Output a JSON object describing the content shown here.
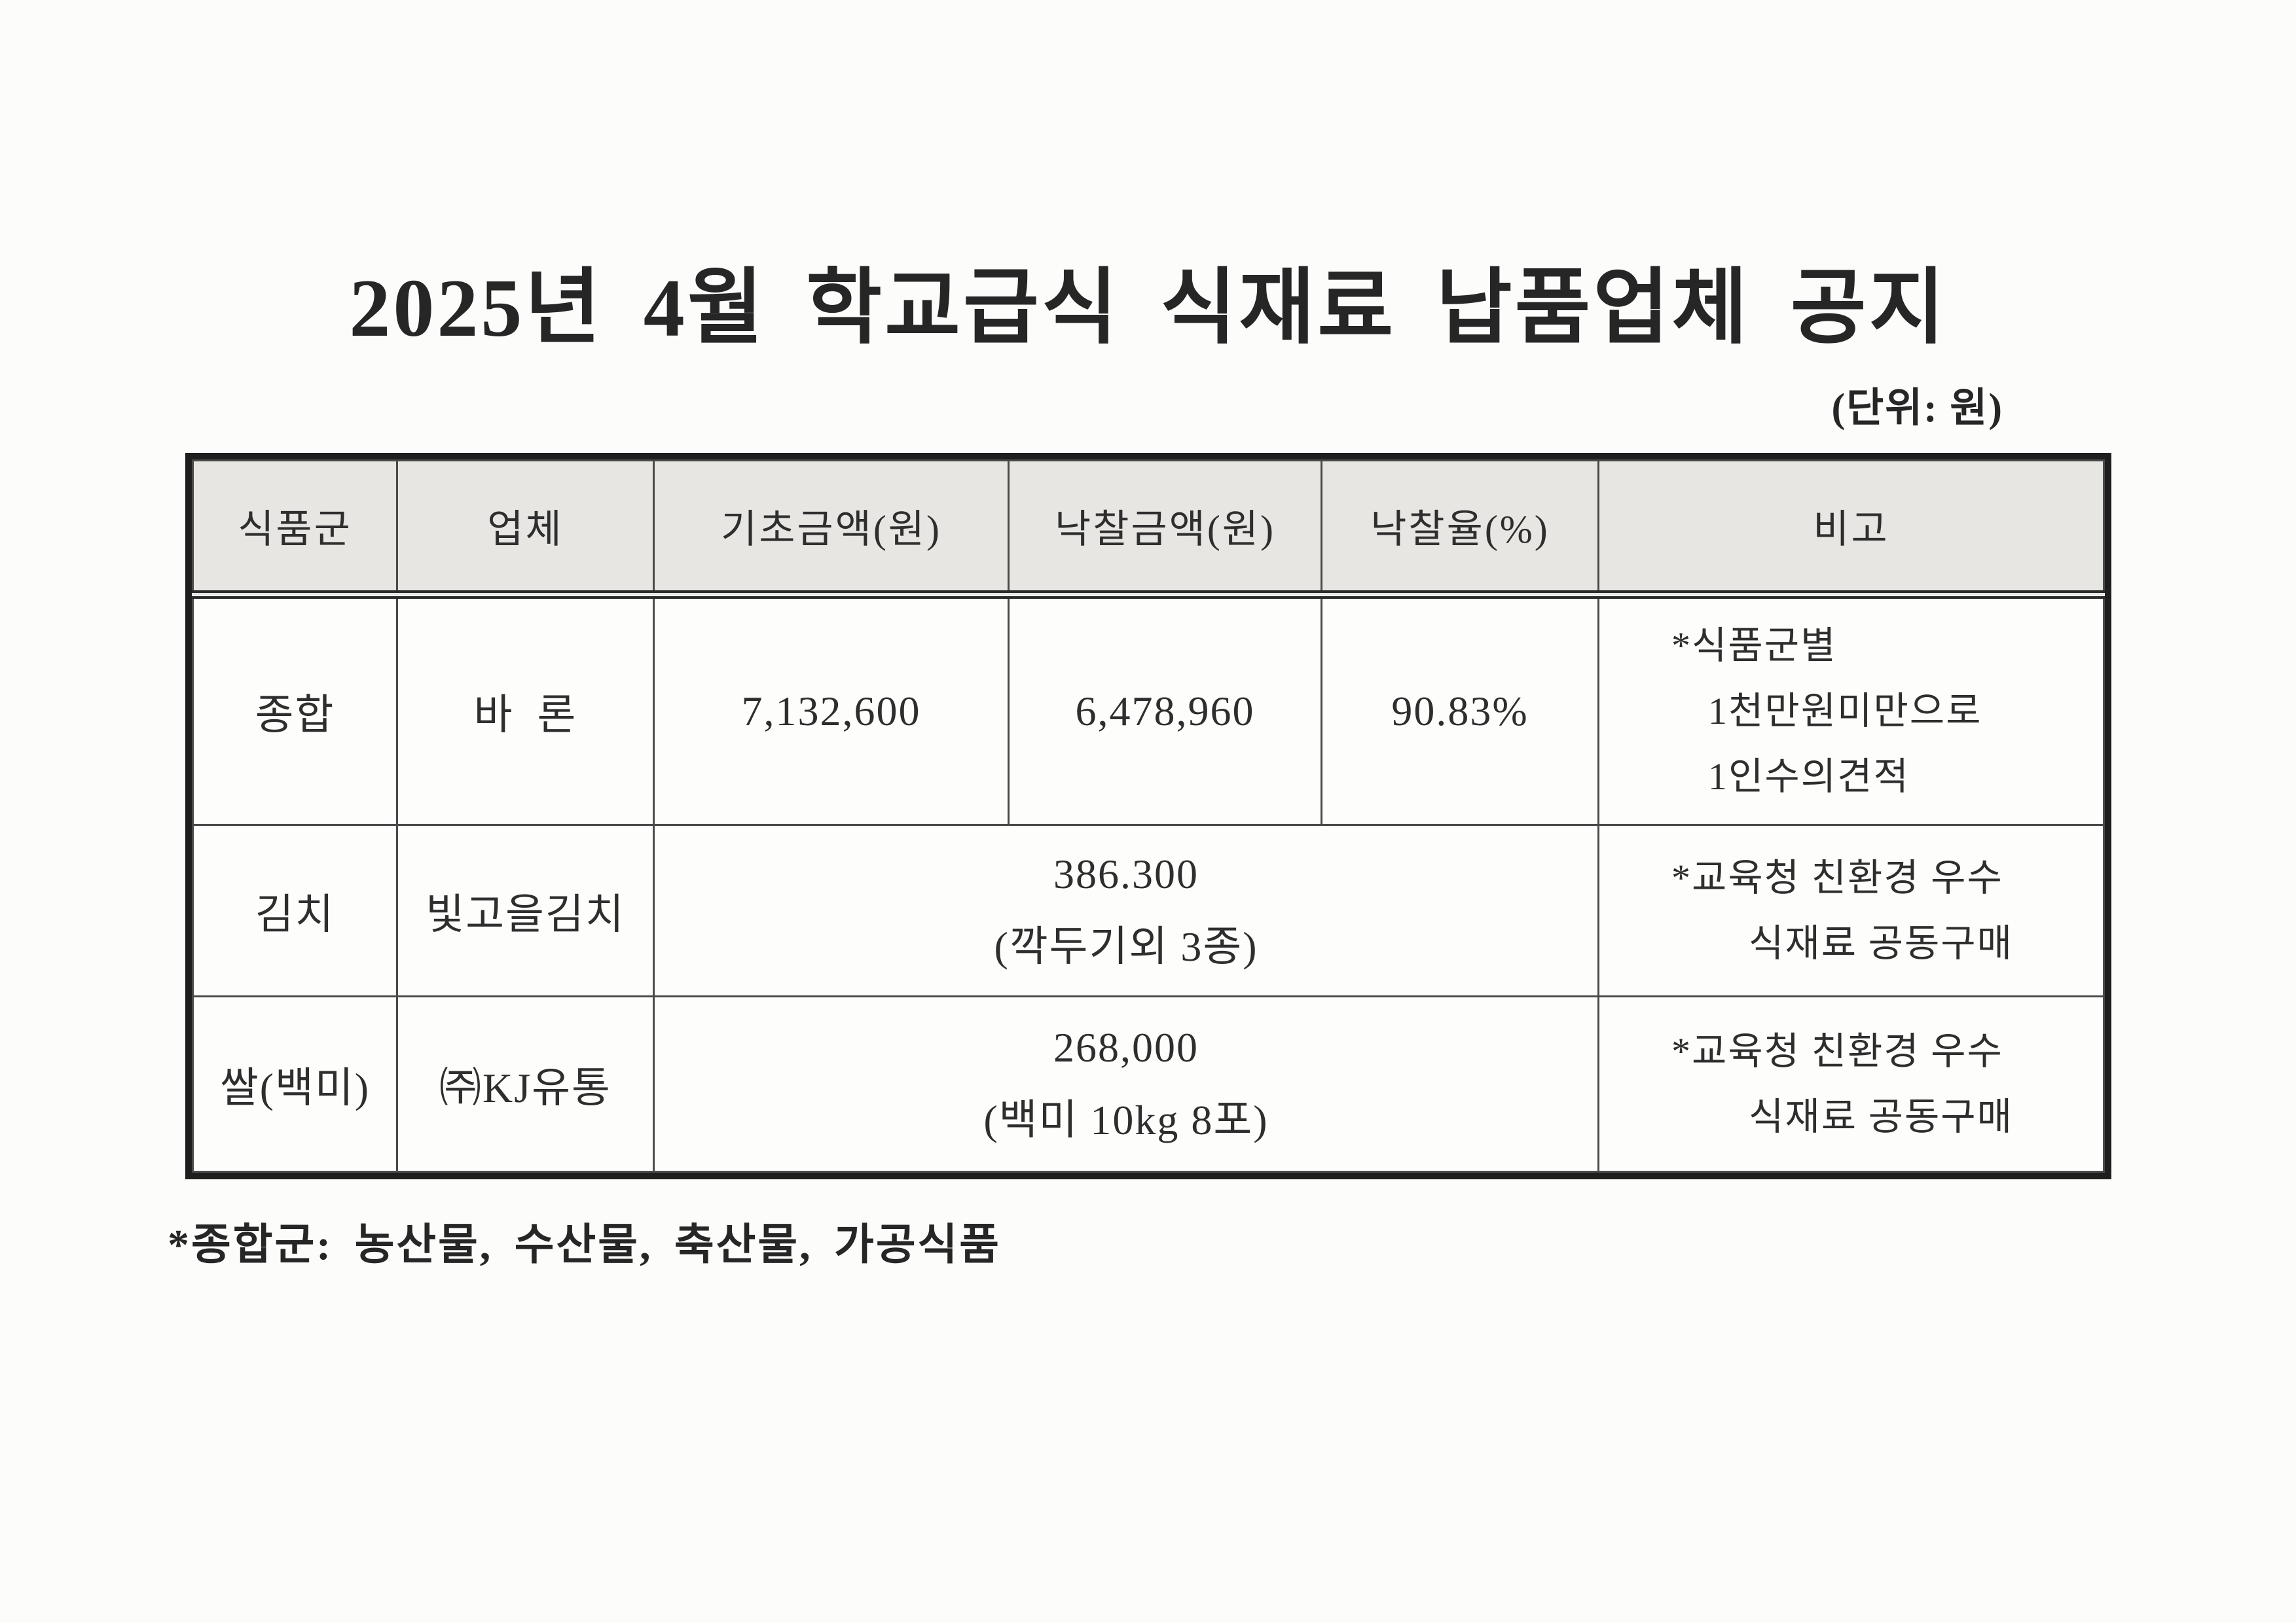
{
  "document": {
    "title": "2025년 4월 학교급식 식재료 납품업체 공지",
    "unit_note": "(단위: 원)",
    "footnote": "*종합군: 농산물, 수산물, 축산물, 가공식품"
  },
  "table": {
    "headers": {
      "food_group": "식품군",
      "vendor": "업체",
      "base_amount": "기초금액(원)",
      "winning_amount": "낙찰금액(원)",
      "winning_rate": "낙찰율(%)",
      "remarks": "비고"
    },
    "rows": [
      {
        "food_group": "종합",
        "vendor": "바  론",
        "base_amount": "7,132,600",
        "winning_amount": "6,478,960",
        "winning_rate": "90.83%",
        "remarks": [
          "*식품군별",
          "1천만원미만으로",
          "1인수의견적"
        ]
      },
      {
        "food_group": "김치",
        "vendor": "빛고을김치",
        "merged": [
          "386.300",
          "(깍두기외 3종)"
        ],
        "remarks": [
          "*교육청 친환경 우수",
          "식재료 공동구매"
        ]
      },
      {
        "food_group": "쌀(백미)",
        "vendor": "㈜KJ유통",
        "merged": [
          "268,000",
          "(백미 10kg 8포)"
        ],
        "remarks": [
          "*교육청 친환경 우수",
          "식재료 공동구매"
        ]
      }
    ]
  },
  "colors": {
    "header_bg": "#e7e6e3",
    "text": "#2b2b2b",
    "border": "#2a2a2a",
    "page_bg": "#fcfcfb"
  }
}
